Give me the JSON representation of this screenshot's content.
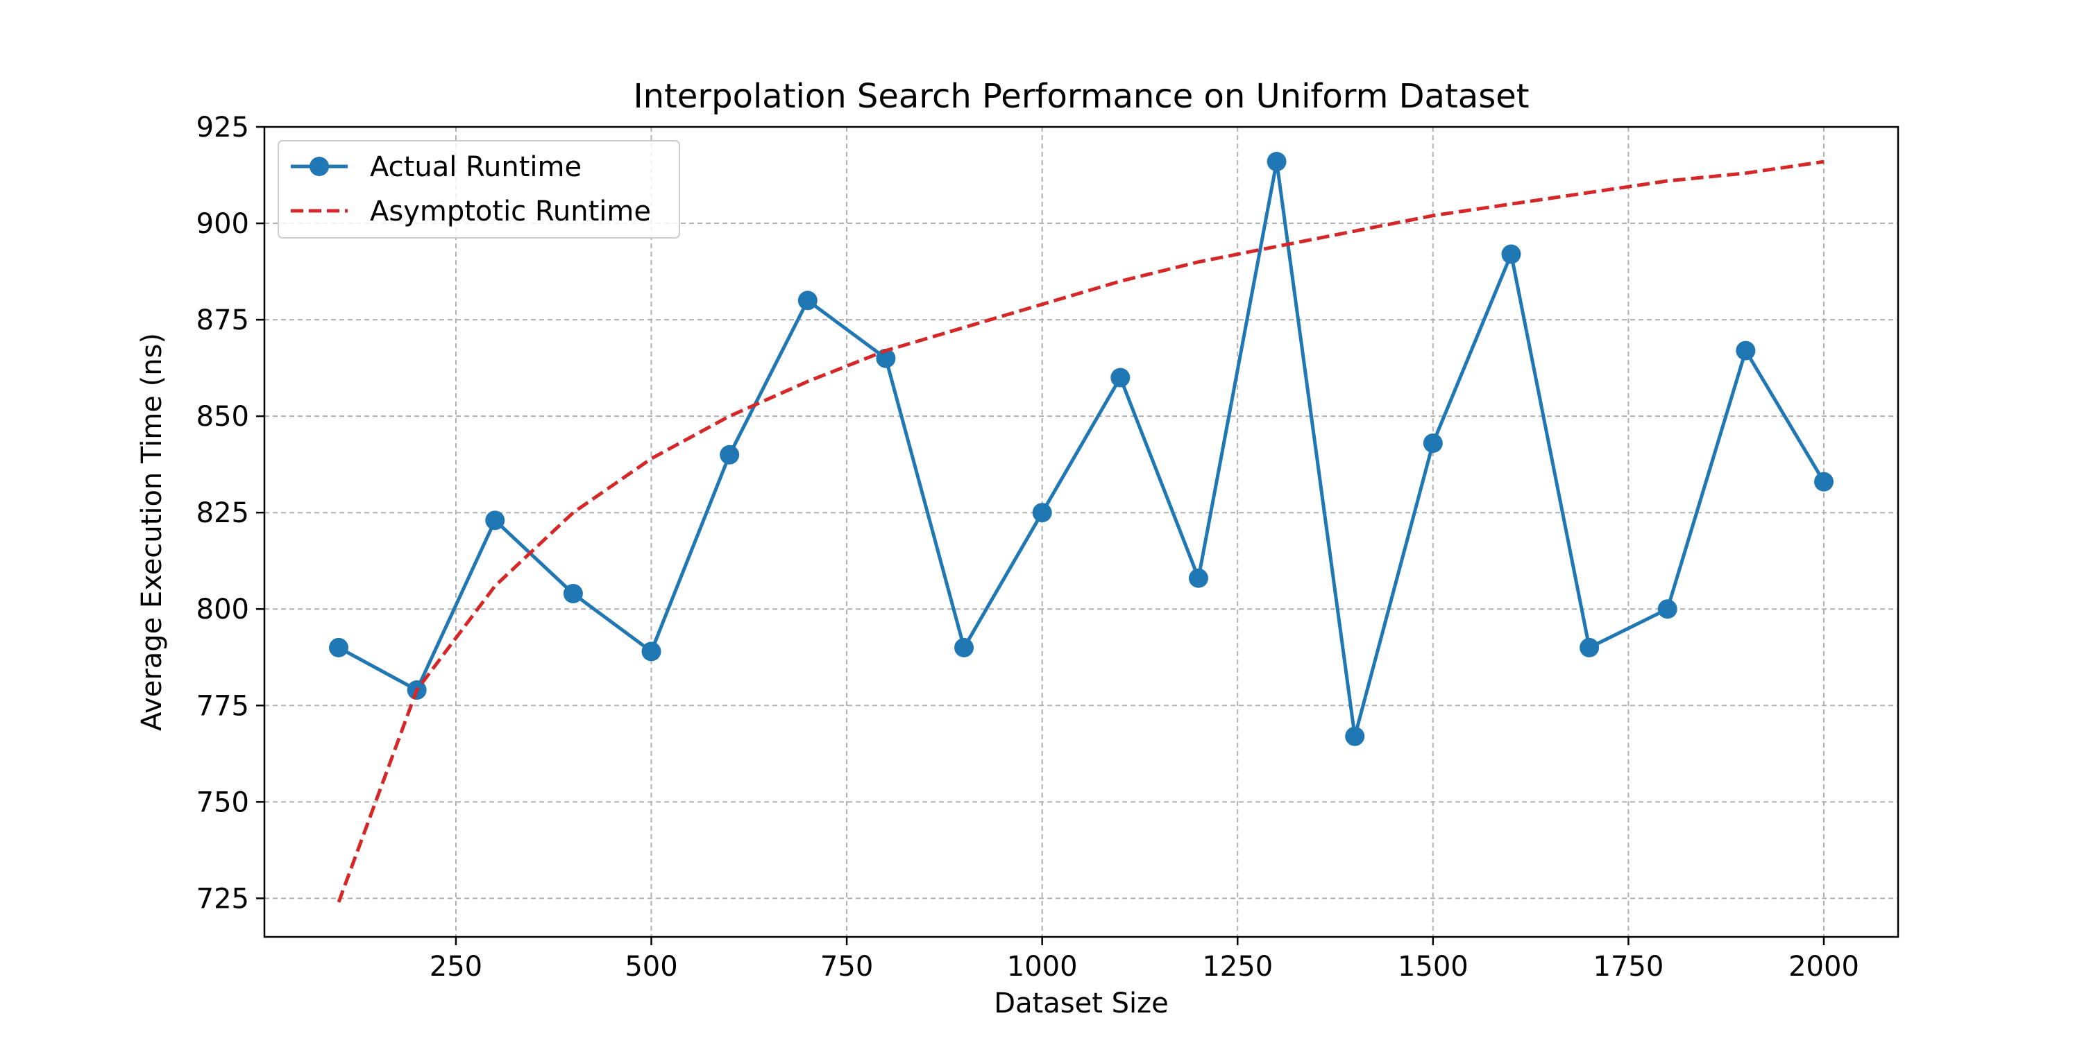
{
  "chart_data": {
    "type": "line",
    "title": "Interpolation Search Performance on Uniform Dataset",
    "xlabel": "Dataset Size",
    "ylabel": "Average Execution Time (ns)",
    "xlim": [
      5,
      2095
    ],
    "ylim": [
      715,
      925
    ],
    "xticks": [
      250,
      500,
      750,
      1000,
      1250,
      1500,
      1750,
      2000
    ],
    "yticks": [
      725,
      750,
      775,
      800,
      825,
      850,
      875,
      900,
      925
    ],
    "grid": true,
    "legend_position": "top-left",
    "series": [
      {
        "name": "Actual Runtime",
        "style": "solid-with-markers",
        "color": "#1f77b4",
        "x": [
          100,
          200,
          300,
          400,
          500,
          600,
          700,
          800,
          900,
          1000,
          1100,
          1200,
          1300,
          1400,
          1500,
          1600,
          1700,
          1800,
          1900,
          2000
        ],
        "y": [
          790,
          779,
          823,
          804,
          789,
          840,
          880,
          865,
          790,
          825,
          860,
          808,
          916,
          767,
          843,
          892,
          790,
          800,
          867,
          833
        ]
      },
      {
        "name": "Asymptotic Runtime",
        "style": "dashed",
        "color": "#d62728",
        "x": [
          100,
          200,
          300,
          400,
          500,
          600,
          700,
          800,
          900,
          1000,
          1100,
          1200,
          1300,
          1400,
          1500,
          1600,
          1700,
          1800,
          1900,
          2000
        ],
        "y": [
          724,
          779,
          806,
          825,
          839,
          850,
          859,
          867,
          873,
          879,
          885,
          890,
          894,
          898,
          902,
          905,
          908,
          911,
          913,
          916
        ]
      }
    ]
  }
}
